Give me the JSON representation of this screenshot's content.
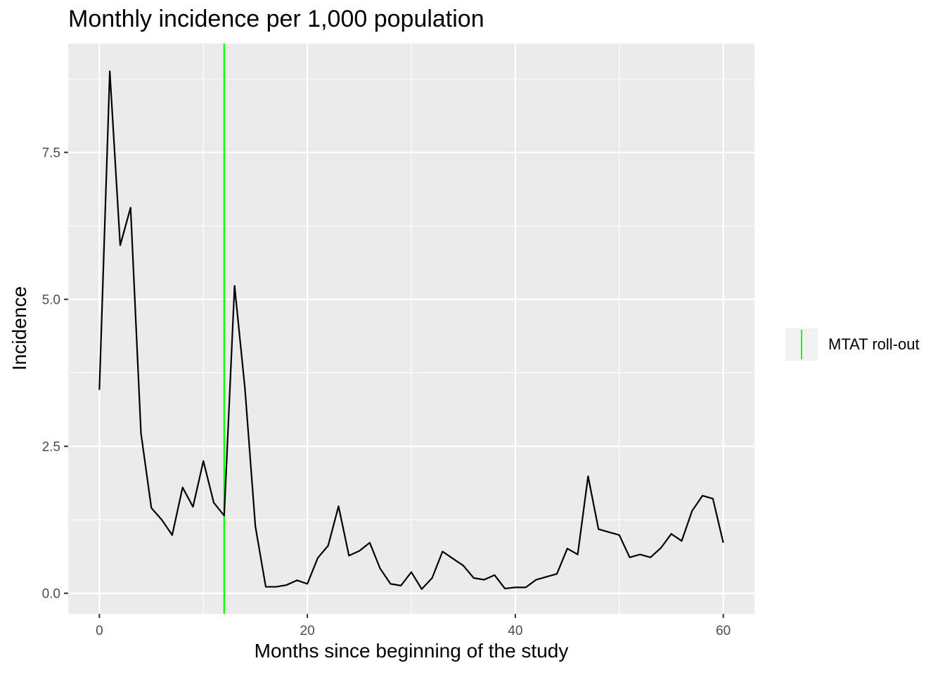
{
  "chart_data": {
    "type": "line",
    "title": "Monthly incidence per 1,000 population",
    "xlabel": "Months since beginning of the study",
    "ylabel": "Incidence",
    "xlim": [
      -3,
      63
    ],
    "ylim": [
      -0.35,
      9.35
    ],
    "x_ticks": [
      0,
      20,
      40,
      60
    ],
    "x_tick_labels": [
      "0",
      "20",
      "40",
      "60"
    ],
    "y_ticks": [
      0,
      2.5,
      5,
      7.5
    ],
    "y_tick_labels": [
      "0.0",
      "2.5",
      "5.0",
      "7.5"
    ],
    "grid": true,
    "series": [
      {
        "color": "#000000",
        "x": [
          0,
          1,
          2,
          3,
          4,
          5,
          6,
          7,
          8,
          9,
          10,
          11,
          12,
          13,
          14,
          15,
          16,
          17,
          18,
          19,
          20,
          21,
          22,
          23,
          24,
          25,
          26,
          27,
          28,
          29,
          30,
          31,
          32,
          33,
          34,
          35,
          36,
          37,
          38,
          39,
          40,
          41,
          42,
          43,
          44,
          45,
          46,
          47,
          48,
          49,
          50,
          51,
          52,
          53,
          54,
          55,
          56,
          57,
          58,
          59,
          60
        ],
        "y": [
          3.46,
          8.88,
          5.92,
          6.56,
          2.72,
          1.45,
          1.25,
          0.99,
          1.8,
          1.47,
          2.25,
          1.54,
          1.32,
          5.23,
          3.48,
          1.14,
          0.11,
          0.11,
          0.14,
          0.22,
          0.16,
          0.6,
          0.81,
          1.48,
          0.64,
          0.72,
          0.86,
          0.42,
          0.16,
          0.13,
          0.36,
          0.07,
          0.26,
          0.71,
          0.59,
          0.47,
          0.26,
          0.23,
          0.31,
          0.08,
          0.1,
          0.1,
          0.23,
          0.28,
          0.33,
          0.76,
          0.66,
          1.99,
          1.09,
          1.04,
          0.99,
          0.61,
          0.66,
          0.61,
          0.77,
          1.01,
          0.89,
          1.4,
          1.66,
          1.61,
          0.86
        ]
      }
    ],
    "reference_lines": [
      {
        "name": "MTAT roll-out",
        "x": 12,
        "color": "#00ff00"
      }
    ],
    "legend": {
      "position": "right",
      "label": "MTAT roll-out",
      "color": "#00ff00"
    }
  },
  "colors": {
    "panel_background": "#ebebeb",
    "grid_major": "#ffffff",
    "tick_text": "#4d4d4d",
    "line": "#000000",
    "reference_line": "#00ff00"
  }
}
